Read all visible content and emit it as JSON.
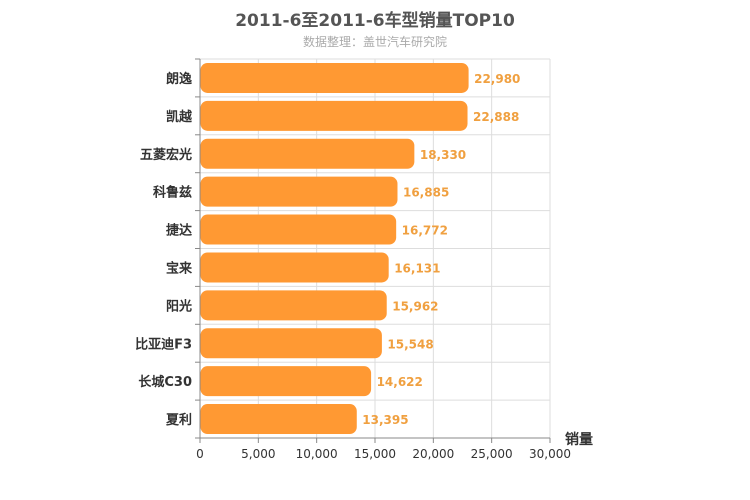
{
  "chart_data": {
    "type": "bar",
    "orientation": "horizontal",
    "title": "2011-6至2011-6车型销量TOP10",
    "subtitle": "数据整理：盖世汽车研究院",
    "xlabel": "销量",
    "ylabel": "",
    "categories": [
      "朗逸",
      "凯越",
      "五菱宏光",
      "科鲁兹",
      "捷达",
      "宝来",
      "阳光",
      "比亚迪F3",
      "长城C30",
      "夏利"
    ],
    "values": [
      22980,
      22888,
      18330,
      16885,
      16772,
      16131,
      15962,
      15548,
      14622,
      13395
    ],
    "value_labels": [
      "22,980",
      "22,888",
      "18,330",
      "16,885",
      "16,772",
      "16,131",
      "15,962",
      "15,548",
      "14,622",
      "13,395"
    ],
    "xlim": [
      0,
      30000
    ],
    "ticks": [
      0,
      5000,
      10000,
      15000,
      20000,
      25000,
      30000
    ],
    "tick_labels": [
      "0",
      "5,000",
      "10,000",
      "15,000",
      "20,000",
      "25,000",
      "30,000"
    ],
    "grid": true,
    "legend": "none",
    "bar_color": "#ff9933",
    "value_label_color": "#f0a040"
  }
}
